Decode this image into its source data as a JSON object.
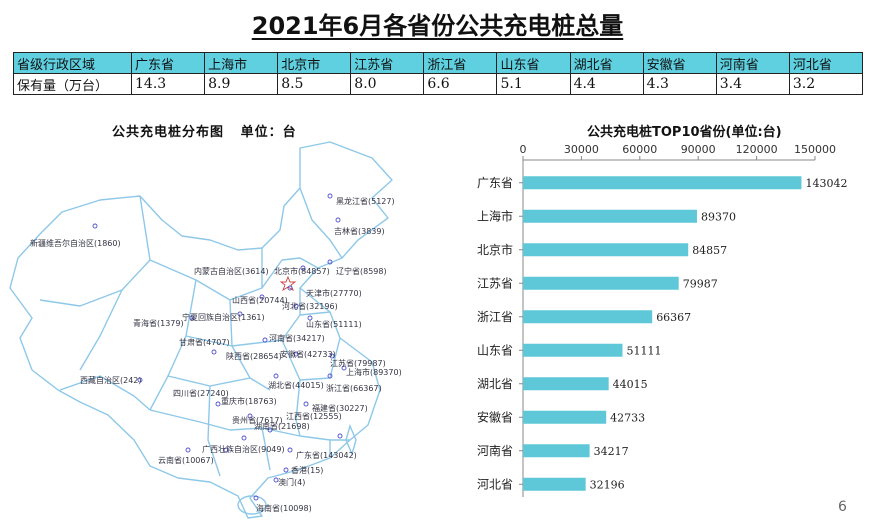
{
  "title": "2021年6月各省份公共充电桩总量",
  "summary_table": {
    "header_label": "省级行政区域",
    "value_label": "保有量（万台）",
    "provinces": [
      "广东省",
      "上海市",
      "北京市",
      "江苏省",
      "浙江省",
      "山东省",
      "湖北省",
      "安徽省",
      "河南省",
      "河北省"
    ],
    "values": [
      "14.3",
      "8.9",
      "8.5",
      "8.0",
      "6.6",
      "5.1",
      "4.4",
      "4.3",
      "3.4",
      "3.2"
    ]
  },
  "map": {
    "title": "公共充电桩分布图",
    "unit": "单位：台",
    "labels": [
      {
        "text": "黑龙江省(5127)"
      },
      {
        "text": "吉林省(3839)"
      },
      {
        "text": "新疆维吾尔自治区(1860)"
      },
      {
        "text": "内蒙古自治区(3614)"
      },
      {
        "text": "北京市(84857)"
      },
      {
        "text": "辽宁省(8598)"
      },
      {
        "text": "天津市(27770)"
      },
      {
        "text": "山西省(20744)"
      },
      {
        "text": "河北省(32196)"
      },
      {
        "text": "宁夏回族自治区(1361)"
      },
      {
        "text": "青海省(1379)"
      },
      {
        "text": "山东省(51111)"
      },
      {
        "text": "甘肃省(4707)"
      },
      {
        "text": "河南省(34217)"
      },
      {
        "text": "陕西省(28654)"
      },
      {
        "text": "安徽省(42733)"
      },
      {
        "text": "江苏省(79987)"
      },
      {
        "text": "上海市(89370)"
      },
      {
        "text": "湖北省(44015)"
      },
      {
        "text": "浙江省(66367)"
      },
      {
        "text": "西藏自治区(242)"
      },
      {
        "text": "四川省(27240)"
      },
      {
        "text": "重庆市(18763)"
      },
      {
        "text": "福建省(30227)"
      },
      {
        "text": "江西省(12555)"
      },
      {
        "text": "贵州省(7617)"
      },
      {
        "text": "湖南省(21698)"
      },
      {
        "text": "广西壮族自治区(9049)"
      },
      {
        "text": "广东省(143042)"
      },
      {
        "text": "云南省(10067)"
      },
      {
        "text": "香港(15)"
      },
      {
        "text": "澳门(4)"
      },
      {
        "text": "海南省(10098)"
      }
    ]
  },
  "chart_data": {
    "type": "bar",
    "orientation": "horizontal",
    "title": "公共充电桩TOP10省份(单位:台)",
    "categories": [
      "广东省",
      "上海市",
      "北京市",
      "江苏省",
      "浙江省",
      "山东省",
      "湖北省",
      "安徽省",
      "河南省",
      "河北省"
    ],
    "values": [
      143042,
      89370,
      84857,
      79987,
      66367,
      51111,
      44015,
      42733,
      34217,
      32196
    ],
    "xlim": [
      0,
      150000
    ],
    "xticks": [
      0,
      30000,
      60000,
      90000,
      120000,
      150000
    ],
    "axis_position": "top",
    "bar_color": "#5ec8d8",
    "data_labels": true
  },
  "page_number": "6"
}
